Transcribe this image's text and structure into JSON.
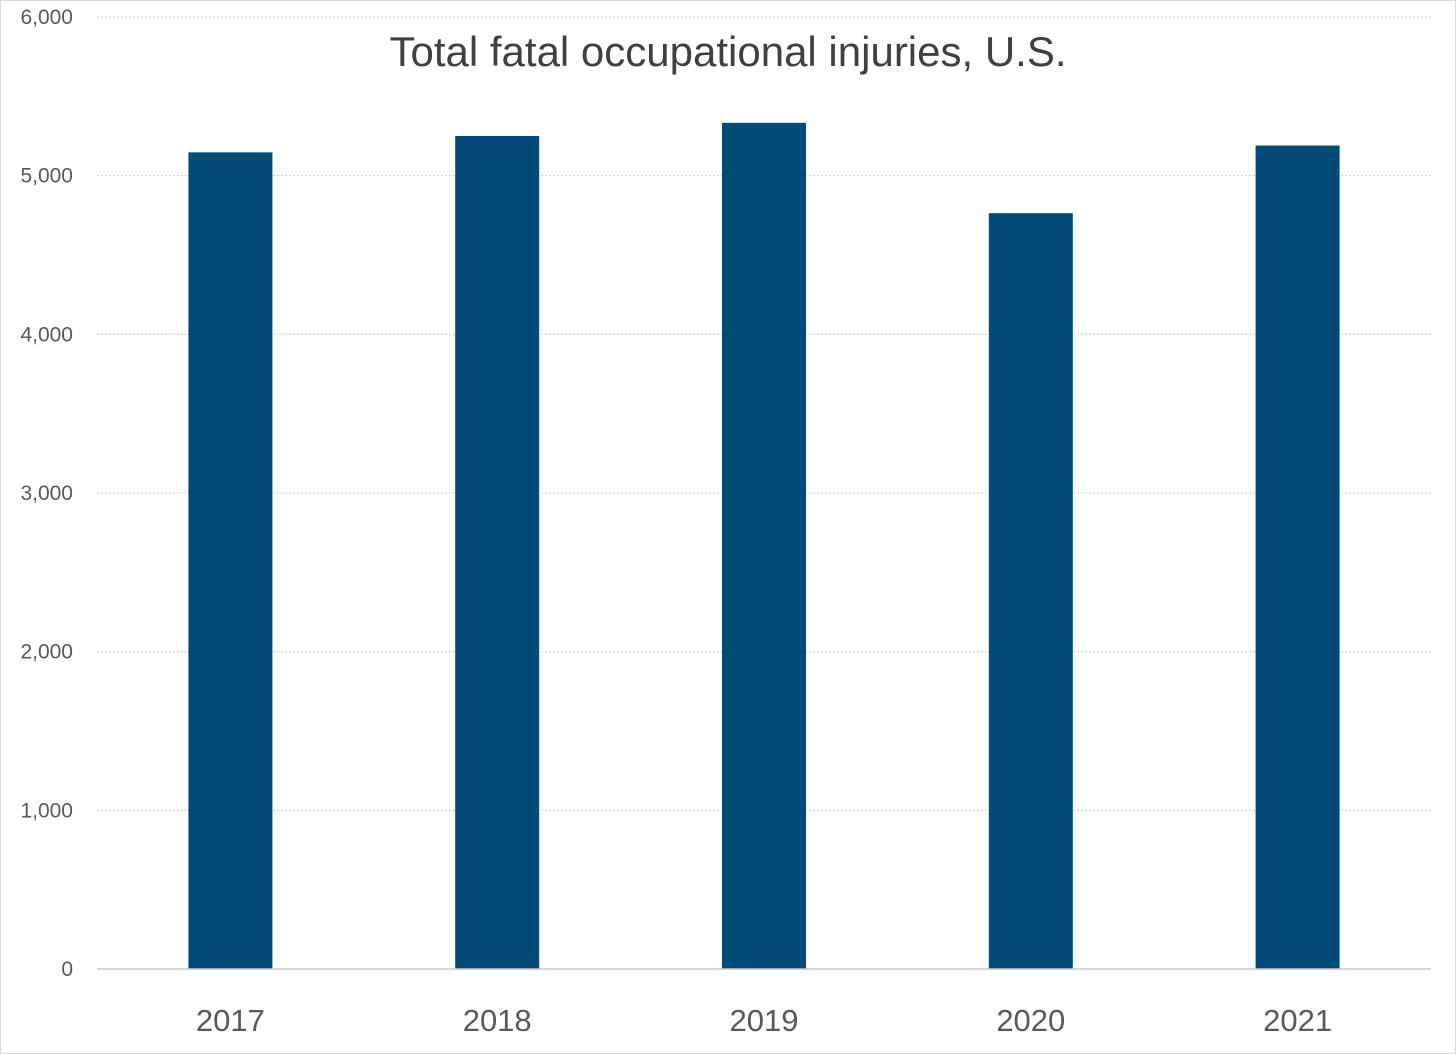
{
  "chart_data": {
    "type": "bar",
    "title": "Total fatal occupational injuries, U.S.",
    "xlabel": "",
    "ylabel": "",
    "categories": [
      "2017",
      "2018",
      "2019",
      "2020",
      "2021"
    ],
    "values": [
      5147,
      5250,
      5333,
      4764,
      5190
    ],
    "ylim": [
      0,
      6000
    ],
    "yticks": [
      0,
      1000,
      2000,
      3000,
      4000,
      5000,
      6000
    ],
    "ytick_labels": [
      "0",
      "1,000",
      "2,000",
      "3,000",
      "4,000",
      "5,000",
      "6,000"
    ],
    "grid": true,
    "legend": "none",
    "bar_color": "#044b7a"
  }
}
